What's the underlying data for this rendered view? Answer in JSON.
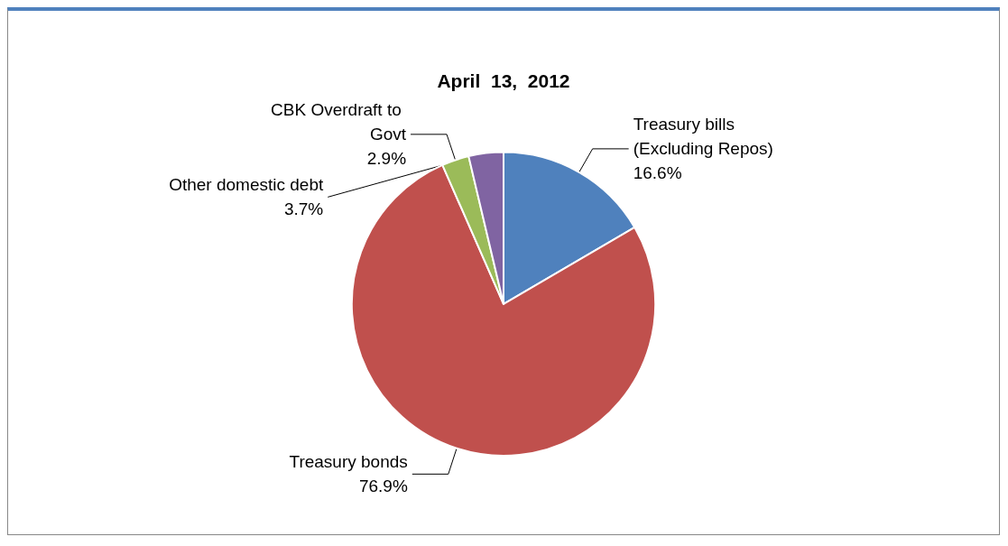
{
  "chart_data": {
    "type": "pie",
    "title": "April  13,  2012",
    "categories": [
      "Treasury bills (Excluding Repos)",
      "Treasury bonds",
      "CBK Overdraft to Govt",
      "Other domestic debt"
    ],
    "values": [
      16.6,
      76.9,
      2.9,
      3.7
    ],
    "value_labels": [
      "16.6%",
      "76.9%",
      "2.9%",
      "3.7%"
    ],
    "colors": [
      "#4f81bd",
      "#c0504d",
      "#9bbb59",
      "#8064a2"
    ],
    "legend": false
  }
}
